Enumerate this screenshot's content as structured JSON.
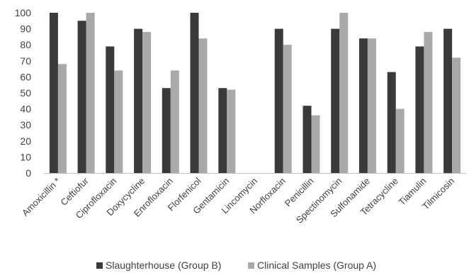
{
  "chart_data": {
    "type": "bar",
    "title": "",
    "xlabel": "",
    "ylabel": "",
    "ylim": [
      0,
      100
    ],
    "yticks": [
      0,
      10,
      20,
      30,
      40,
      50,
      60,
      70,
      80,
      90,
      100
    ],
    "grid": false,
    "legend_position": "bottom",
    "categories": [
      "Amoxicillin *",
      "Ceftiofur",
      "Ciprofloxacin",
      "Doxycycline",
      "Enrofloxacin",
      "Florfenicol",
      "Gentamicin",
      "Lincomycin",
      "Norfloxacin",
      "Penicillin",
      "Spectinomycin",
      "Sulfonamide",
      "Tetracycline",
      "Tiamulin",
      "Tilmicosin"
    ],
    "series": [
      {
        "name": "Slaughterhouse (Group B)",
        "color": "#3a3a3a",
        "values": [
          100,
          95,
          79,
          90,
          53,
          100,
          53,
          0,
          90,
          42,
          90,
          84,
          63,
          79,
          90
        ]
      },
      {
        "name": "Clinical Samples (Group A)",
        "color": "#a9a9a9",
        "values": [
          68,
          100,
          64,
          88,
          64,
          84,
          52,
          0,
          80,
          36,
          100,
          84,
          40,
          88,
          72
        ]
      }
    ]
  }
}
